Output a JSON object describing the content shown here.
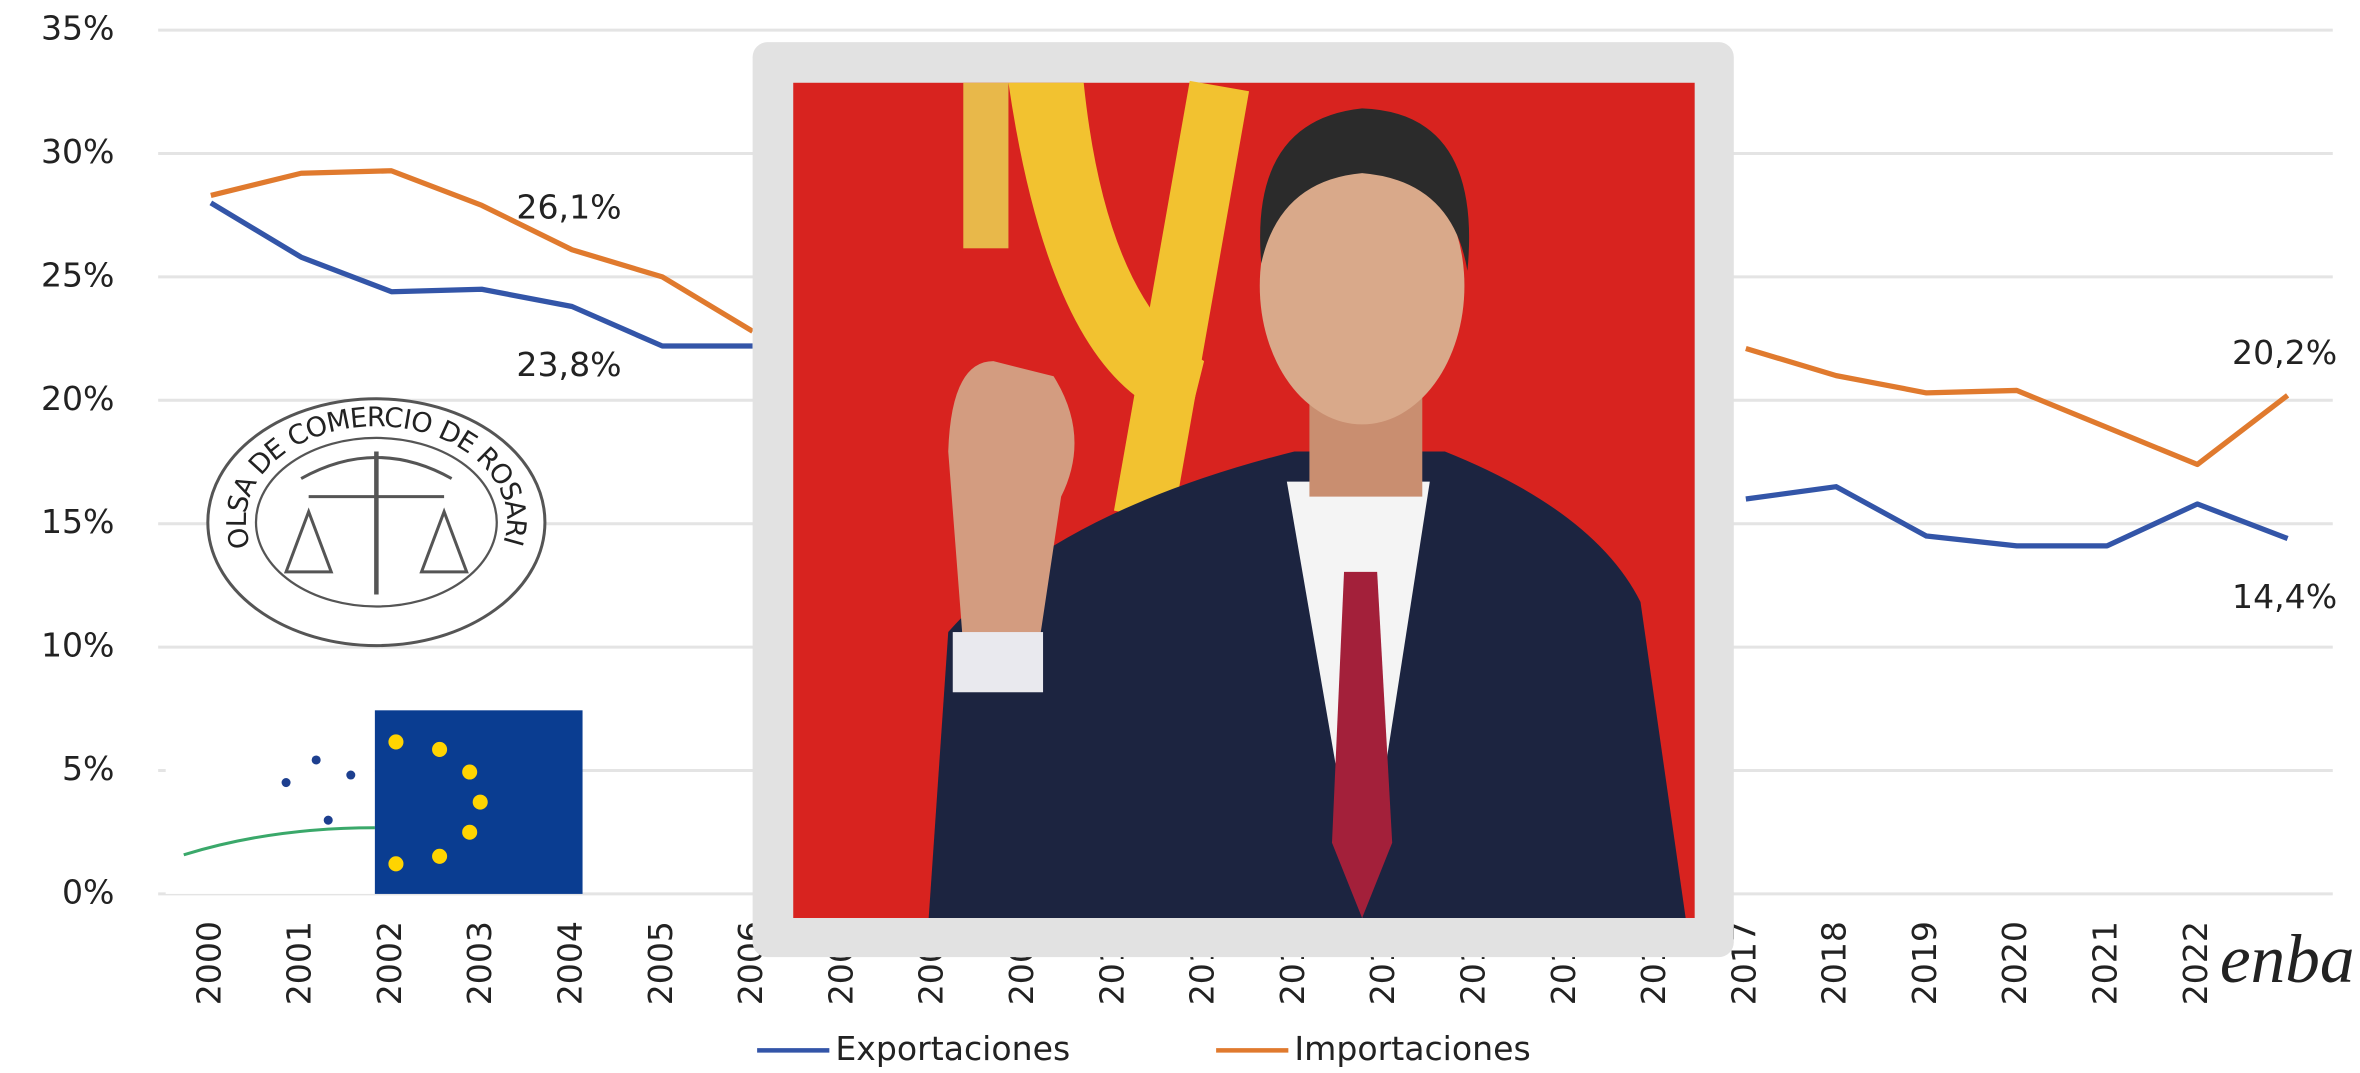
{
  "chart_data": {
    "type": "line",
    "categories": [
      "2000",
      "2001",
      "2002",
      "2003",
      "2004",
      "2005",
      "2006",
      "2007",
      "2008",
      "2009",
      "2010",
      "2011",
      "2012",
      "2013",
      "2014",
      "2015",
      "2016",
      "2017",
      "2018",
      "2019",
      "2020",
      "2021",
      "2022",
      null
    ],
    "series": [
      {
        "name": "Exportaciones",
        "color": "#3355a8",
        "values": [
          28.0,
          25.8,
          24.4,
          24.5,
          23.8,
          22.2,
          22.2,
          null,
          null,
          null,
          null,
          null,
          null,
          null,
          null,
          null,
          null,
          16.0,
          16.5,
          14.5,
          14.1,
          14.1,
          15.8,
          14.4
        ],
        "value_labels": [
          null,
          null,
          null,
          null,
          "23,8%",
          null,
          null,
          null,
          null,
          null,
          null,
          null,
          null,
          null,
          null,
          null,
          null,
          null,
          null,
          null,
          null,
          null,
          null,
          "14,4%"
        ]
      },
      {
        "name": "Importaciones",
        "color": "#e07a2e",
        "values": [
          28.3,
          29.2,
          29.3,
          27.9,
          26.1,
          25.0,
          22.8,
          null,
          null,
          null,
          null,
          null,
          null,
          null,
          null,
          null,
          null,
          22.1,
          21.0,
          20.3,
          20.4,
          18.9,
          17.4,
          20.2
        ],
        "value_labels": [
          null,
          null,
          null,
          null,
          "26,1%",
          null,
          null,
          null,
          null,
          null,
          null,
          null,
          null,
          null,
          null,
          null,
          null,
          null,
          null,
          null,
          null,
          null,
          null,
          "20,2%"
        ]
      }
    ],
    "ylim": [
      0,
      35
    ],
    "yticks": [
      {
        "value": 0,
        "label": "0%"
      },
      {
        "value": 5,
        "label": "5%"
      },
      {
        "value": 10,
        "label": "10%"
      },
      {
        "value": 15,
        "label": "15%"
      },
      {
        "value": 20,
        "label": "20%"
      },
      {
        "value": 25,
        "label": "25%"
      },
      {
        "value": 30,
        "label": "30%"
      },
      {
        "value": 35,
        "label": "35%"
      }
    ],
    "grid": true,
    "legend": "bottom"
  },
  "overlay": {
    "seal_text": "BOLSA DE COMERCIO DE ROSARIO",
    "logo_text": "enba"
  }
}
